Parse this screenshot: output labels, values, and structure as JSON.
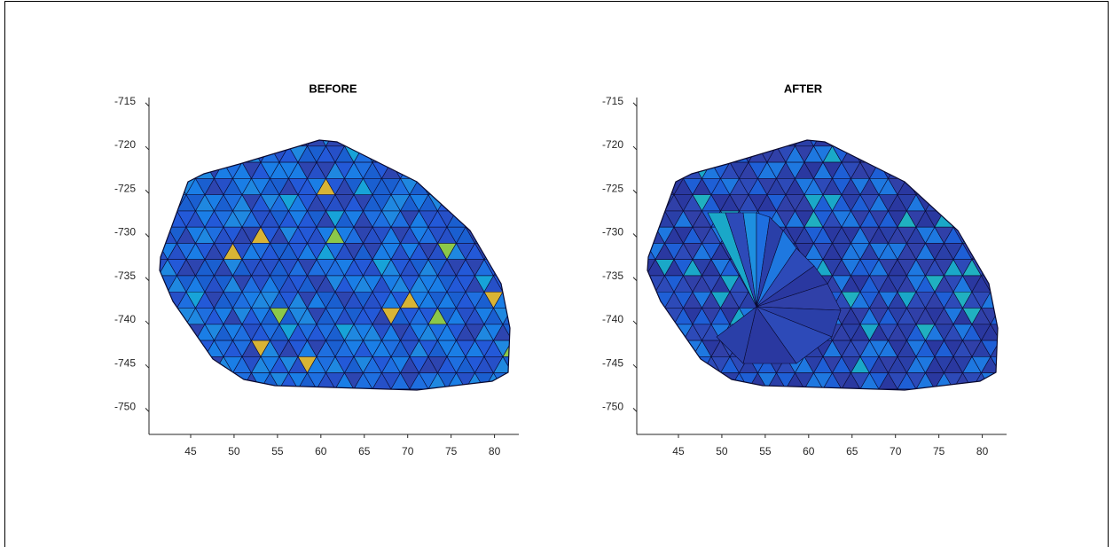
{
  "chart_data": [
    {
      "type": "mesh",
      "title": "BEFORE",
      "xlim": [
        40.2,
        82.8
      ],
      "ylim": [
        -752.6,
        -714
      ],
      "xticks": [
        45,
        50,
        55,
        60,
        65,
        70,
        75,
        80
      ],
      "yticks": [
        -715,
        -720,
        -725,
        -730,
        -735,
        -740,
        -745,
        -750
      ]
    },
    {
      "type": "mesh",
      "title": "AFTER",
      "xlim": [
        40.2,
        82.8
      ],
      "ylim": [
        -752.6,
        -714
      ],
      "xticks": [
        45,
        50,
        55,
        60,
        65,
        70,
        75,
        80
      ],
      "yticks": [
        -715,
        -720,
        -725,
        -730,
        -735,
        -740,
        -745,
        -750
      ]
    }
  ]
}
